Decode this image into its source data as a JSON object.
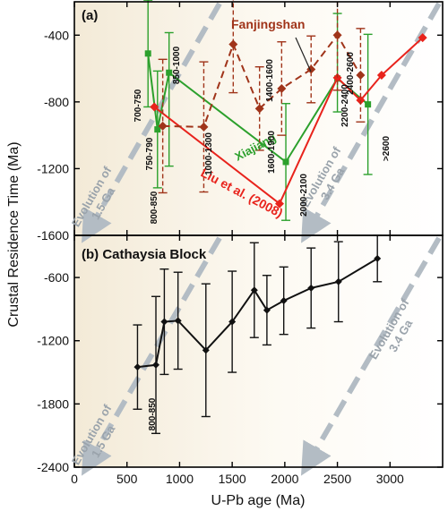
{
  "chart_data": [
    {
      "type": "line",
      "panel_label": "(a)",
      "x_range": [
        0,
        3500
      ],
      "ylim": [
        -1600,
        -200
      ],
      "y_ticks": [
        -400,
        -800,
        -1200,
        -1600
      ],
      "series": [
        {
          "name": "Xiajiang",
          "color": "#2ca02c",
          "dashed": false,
          "marker": "square",
          "points": [
            {
              "x": 700,
              "y": -510,
              "err_lo": 320,
              "err_hi": 320
            },
            {
              "x": 790,
              "y": -965,
              "err_lo": 350,
              "err_hi": 350
            },
            {
              "x": 900,
              "y": -625,
              "err_lo": 560,
              "err_hi": 240
            },
            {
              "x": 2010,
              "y": -1160,
              "err_lo": 350,
              "err_hi": 350
            },
            {
              "x": 2500,
              "y": -660,
              "err_lo": 200,
              "err_hi": 390
            },
            {
              "x": 2790,
              "y": -815,
              "err_lo": 420,
              "err_hi": 420
            }
          ]
        },
        {
          "name": "Liu et al. (2008)",
          "color": "#e8231c",
          "dashed": false,
          "marker": "diamond",
          "points": [
            {
              "x": 760,
              "y": -830
            },
            {
              "x": 1950,
              "y": -1410
            },
            {
              "x": 2500,
              "y": -655
            },
            {
              "x": 2720,
              "y": -790
            },
            {
              "x": 2920,
              "y": -640
            },
            {
              "x": 3310,
              "y": -415
            }
          ]
        },
        {
          "name": "Fanjingshan",
          "color": "#a0341a",
          "dashed": true,
          "marker": "diamond",
          "points": [
            {
              "x": 840,
              "y": -945,
              "err_lo": 400,
              "err_hi": 400
            },
            {
              "x": 1230,
              "y": -950,
              "err_lo": 390,
              "err_hi": 390
            },
            {
              "x": 1510,
              "y": -455,
              "err_lo": 290,
              "err_hi": 290
            },
            {
              "x": 1760,
              "y": -840,
              "err_lo": 250,
              "err_hi": 250
            },
            {
              "x": 1970,
              "y": -720,
              "err_lo": 280,
              "err_hi": 280
            },
            {
              "x": 2250,
              "y": -605,
              "err_lo": 200,
              "err_hi": 200
            },
            {
              "x": 2500,
              "y": -400,
              "err_lo": 330,
              "err_hi": 330
            },
            {
              "x": 2720,
              "y": -640,
              "err_lo": 280,
              "err_hi": 280
            }
          ]
        }
      ],
      "series_labels": [
        "Fanjingshan",
        "Xiajiang",
        "Liu et al. (2008)"
      ],
      "age_group_labels": [
        "700-750",
        "750-790",
        "800-850",
        "850-1000",
        "1000-1300",
        "1400-1600",
        "1600-1900",
        "2000-2100",
        "2200-2400",
        "2400-2600",
        ">2600"
      ],
      "evolution_labels": [
        "Evolution of 1.5 Ga",
        "Evolution of 3.4 Ga"
      ]
    },
    {
      "type": "line",
      "panel_label": "(b)",
      "title": "Cathaysia Block",
      "xlabel": "U-Pb age (Ma)",
      "x_range": [
        0,
        3500
      ],
      "x_ticks": [
        0,
        500,
        1000,
        1500,
        2000,
        2500,
        3000
      ],
      "ylim": [
        -2400,
        -200
      ],
      "y_ticks": [
        -600,
        -1200,
        -1800,
        -2400
      ],
      "series": [
        {
          "color": "#111111",
          "points": [
            {
              "x": 600,
              "y": -1450,
              "err_lo": 400,
              "err_hi": 400
            },
            {
              "x": 775,
              "y": -1430,
              "err_lo": 650,
              "err_hi": 650
            },
            {
              "x": 855,
              "y": -1020,
              "err_lo": 500,
              "err_hi": 500
            },
            {
              "x": 985,
              "y": -1010,
              "err_lo": 460,
              "err_hi": 460
            },
            {
              "x": 1250,
              "y": -1290,
              "err_lo": 630,
              "err_hi": 630
            },
            {
              "x": 1500,
              "y": -1020,
              "err_lo": 480,
              "err_hi": 480
            },
            {
              "x": 1710,
              "y": -720,
              "err_lo": 450,
              "err_hi": 450
            },
            {
              "x": 1830,
              "y": -910,
              "err_lo": 330,
              "err_hi": 330
            },
            {
              "x": 1990,
              "y": -820,
              "err_lo": 320,
              "err_hi": 320
            },
            {
              "x": 2250,
              "y": -700,
              "err_lo": 380,
              "err_hi": 380
            },
            {
              "x": 2510,
              "y": -640,
              "err_lo": 380,
              "err_hi": 380
            },
            {
              "x": 2880,
              "y": -420,
              "err_lo": 220,
              "err_hi": 220
            }
          ]
        }
      ],
      "age_group_labels": [
        "800-850"
      ],
      "evolution_labels": [
        "Evolution of 1.5 Ga",
        "Evolution of 3.4 Ga"
      ]
    }
  ],
  "shared": {
    "ylabel": "Crustal Residence Time (Ma)"
  }
}
